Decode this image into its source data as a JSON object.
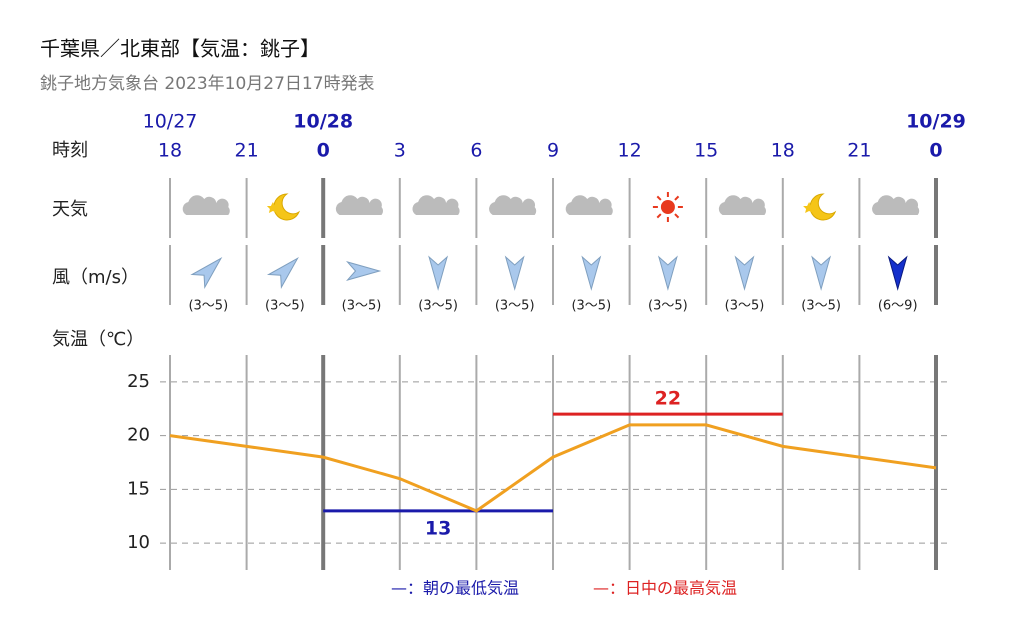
{
  "header": {
    "title": "千葉県／北東部【気温：銚子】",
    "subtitle": "銚子地方気象台 2023年10月27日17時発表"
  },
  "row_labels": {
    "time": "時刻",
    "weather": "天気",
    "wind": "風（m/s）",
    "temp": "気温（℃）"
  },
  "chart_data": {
    "type": "line",
    "categories": [
      18,
      21,
      0,
      3,
      6,
      9,
      12,
      15,
      18,
      21,
      0
    ],
    "dates": [
      "10/27",
      null,
      "10/28",
      null,
      null,
      null,
      null,
      null,
      null,
      null,
      "10/29"
    ],
    "wind": [
      "(3〜5)",
      "(3〜5)",
      "(3〜5)",
      "(3〜5)",
      "(3〜5)",
      "(3〜5)",
      "(3〜5)",
      "(3〜5)",
      "(3〜5)",
      "(6〜9)"
    ],
    "series": [
      {
        "values": [
          20,
          19,
          18,
          16,
          13,
          18,
          21,
          21,
          19,
          18,
          17
        ],
        "color": "#f0a020"
      }
    ],
    "ylim": [
      7.5,
      27.5
    ],
    "yticks": [
      10,
      15,
      20,
      25
    ],
    "grid": true,
    "min_temp": {
      "value": 13,
      "color": "#1a1aaa"
    },
    "max_temp": {
      "value": 22,
      "color": "#dd2222"
    },
    "legend": [
      "—：朝の最低気温",
      "—：日中の最高気温"
    ]
  }
}
